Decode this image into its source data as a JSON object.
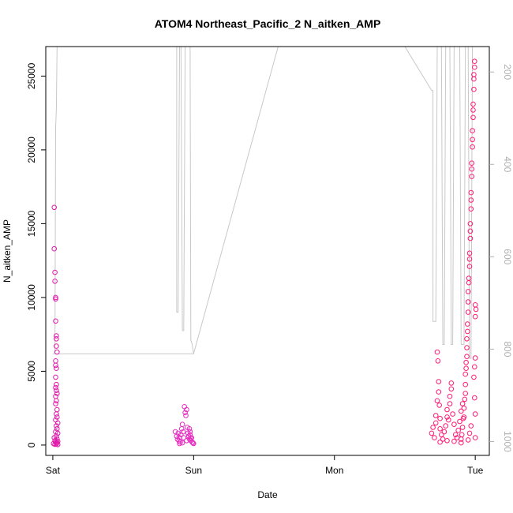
{
  "chart_data": {
    "type": "scatter",
    "title": "ATOM4 Northeast_Pacific_2 N_aitken_AMP",
    "xlabel": "Date",
    "ylabel": "N_aitken_AMP",
    "x_unit": "days",
    "xlim": [
      -0.05,
      3.1
    ],
    "ylim": [
      -700,
      27000
    ],
    "x_ticks": [
      {
        "value": 0,
        "label": "Sat"
      },
      {
        "value": 1,
        "label": "Sun"
      },
      {
        "value": 2,
        "label": "Mon"
      },
      {
        "value": 3,
        "label": "Tue"
      }
    ],
    "y_ticks": [
      0,
      5000,
      10000,
      15000,
      20000,
      25000
    ],
    "y2_ticks": [
      200,
      400,
      600,
      800,
      1000
    ],
    "y2lim": [
      1030,
      145
    ],
    "y2_inverted": true,
    "colors": {
      "point_sat": "#e01aaa",
      "point_sun": "#e62cc0",
      "point_tue": "#ff1a75",
      "altitude_line": "#c8c8c8",
      "axis": "#000000",
      "right_axis": "#b0b0b0"
    },
    "series": [
      {
        "role": "primary",
        "marker": "open-circle",
        "points": [
          [
            0.01,
            16100
          ],
          [
            0.01,
            13300
          ],
          [
            0.015,
            11700
          ],
          [
            0.015,
            11100
          ],
          [
            0.02,
            10000
          ],
          [
            0.02,
            9900
          ],
          [
            0.02,
            8400
          ],
          [
            0.025,
            7400
          ],
          [
            0.025,
            7200
          ],
          [
            0.025,
            6700
          ],
          [
            0.03,
            6300
          ],
          [
            0.02,
            5700
          ],
          [
            0.02,
            5400
          ],
          [
            0.025,
            5200
          ],
          [
            0.02,
            4600
          ],
          [
            0.025,
            4100
          ],
          [
            0.02,
            3900
          ],
          [
            0.025,
            3700
          ],
          [
            0.03,
            3500
          ],
          [
            0.02,
            3300
          ],
          [
            0.025,
            3000
          ],
          [
            0.02,
            2800
          ],
          [
            0.03,
            2400
          ],
          [
            0.025,
            2100
          ],
          [
            0.03,
            1900
          ],
          [
            0.02,
            1700
          ],
          [
            0.035,
            1500
          ],
          [
            0.025,
            1300
          ],
          [
            0.03,
            1100
          ],
          [
            0.02,
            900
          ],
          [
            0.035,
            800
          ],
          [
            0.025,
            600
          ],
          [
            0.01,
            500
          ],
          [
            0.03,
            400
          ],
          [
            0.015,
            300
          ],
          [
            0.035,
            250
          ],
          [
            0.02,
            200
          ],
          [
            0.03,
            150
          ],
          [
            0.005,
            100
          ],
          [
            0.025,
            80
          ],
          [
            0.015,
            50
          ],
          [
            0.035,
            30
          ],
          [
            0.87,
            900
          ],
          [
            0.88,
            600
          ],
          [
            0.885,
            400
          ],
          [
            0.89,
            800
          ],
          [
            0.895,
            300
          ],
          [
            0.9,
            500
          ],
          [
            0.905,
            200
          ],
          [
            0.91,
            700
          ],
          [
            0.915,
            1100
          ],
          [
            0.92,
            1400
          ],
          [
            0.925,
            900
          ],
          [
            0.93,
            500
          ],
          [
            0.935,
            2600
          ],
          [
            0.94,
            2200
          ],
          [
            0.945,
            2000
          ],
          [
            0.95,
            2400
          ],
          [
            0.955,
            1200
          ],
          [
            0.96,
            800
          ],
          [
            0.965,
            600
          ],
          [
            0.97,
            400
          ],
          [
            0.975,
            900
          ],
          [
            0.98,
            300
          ],
          [
            0.985,
            500
          ],
          [
            0.99,
            200
          ],
          [
            0.995,
            150
          ],
          [
            1.0,
            100
          ],
          [
            0.9,
            100
          ],
          [
            0.92,
            150
          ],
          [
            0.95,
            300
          ],
          [
            0.97,
            1100
          ],
          [
            0.975,
            700
          ],
          [
            0.98,
            450
          ],
          [
            2.69,
            800
          ],
          [
            2.7,
            1200
          ],
          [
            2.71,
            500
          ],
          [
            2.72,
            1500
          ],
          [
            2.72,
            2000
          ],
          [
            2.73,
            3000
          ],
          [
            2.73,
            6300
          ],
          [
            2.735,
            5700
          ],
          [
            2.74,
            4300
          ],
          [
            2.74,
            3600
          ],
          [
            2.745,
            2700
          ],
          [
            2.75,
            1800
          ],
          [
            2.75,
            1100
          ],
          [
            2.76,
            700
          ],
          [
            2.77,
            400
          ],
          [
            2.78,
            900
          ],
          [
            2.79,
            1300
          ],
          [
            2.8,
            1900
          ],
          [
            2.8,
            2400
          ],
          [
            2.81,
            1700
          ],
          [
            2.82,
            2800
          ],
          [
            2.82,
            3300
          ],
          [
            2.83,
            3800
          ],
          [
            2.83,
            4200
          ],
          [
            2.84,
            2100
          ],
          [
            2.85,
            1400
          ],
          [
            2.86,
            700
          ],
          [
            2.87,
            500
          ],
          [
            2.88,
            1000
          ],
          [
            2.89,
            1600
          ],
          [
            2.9,
            2300
          ],
          [
            2.91,
            2800
          ],
          [
            2.92,
            1900
          ],
          [
            2.93,
            3500
          ],
          [
            2.93,
            4800
          ],
          [
            2.935,
            5600
          ],
          [
            2.94,
            6000
          ],
          [
            2.94,
            7200
          ],
          [
            2.945,
            8200
          ],
          [
            2.95,
            9000
          ],
          [
            2.95,
            10400
          ],
          [
            2.955,
            11300
          ],
          [
            2.96,
            12100
          ],
          [
            2.96,
            13000
          ],
          [
            2.965,
            14000
          ],
          [
            2.965,
            15000
          ],
          [
            2.97,
            16000
          ],
          [
            2.97,
            17100
          ],
          [
            2.975,
            18200
          ],
          [
            2.975,
            19100
          ],
          [
            2.98,
            20200
          ],
          [
            2.98,
            21300
          ],
          [
            2.985,
            22200
          ],
          [
            2.985,
            23100
          ],
          [
            2.99,
            24100
          ],
          [
            2.99,
            25100
          ],
          [
            2.995,
            26000
          ],
          [
            2.995,
            25600
          ],
          [
            2.99,
            24800
          ],
          [
            2.985,
            22700
          ],
          [
            2.98,
            20700
          ],
          [
            2.975,
            18700
          ],
          [
            2.97,
            16600
          ],
          [
            2.965,
            14500
          ],
          [
            2.96,
            12600
          ],
          [
            2.955,
            11000
          ],
          [
            2.95,
            9700
          ],
          [
            2.945,
            7700
          ],
          [
            2.94,
            6600
          ],
          [
            2.935,
            5200
          ],
          [
            2.93,
            4100
          ],
          [
            2.925,
            3100
          ],
          [
            2.92,
            2500
          ],
          [
            2.915,
            1800
          ],
          [
            2.91,
            1200
          ],
          [
            2.905,
            700
          ],
          [
            2.9,
            400
          ],
          [
            3.0,
            9500
          ],
          [
            3.0,
            8700
          ],
          [
            3.005,
            9200
          ],
          [
            3.0,
            5900
          ],
          [
            2.995,
            5300
          ],
          [
            2.99,
            4600
          ],
          [
            2.995,
            3200
          ],
          [
            3.0,
            2100
          ],
          [
            2.97,
            1300
          ],
          [
            2.96,
            800
          ],
          [
            2.75,
            200
          ],
          [
            2.8,
            300
          ],
          [
            2.85,
            250
          ],
          [
            2.9,
            150
          ],
          [
            2.95,
            350
          ],
          [
            3.0,
            500
          ]
        ]
      },
      {
        "role": "altitude",
        "axis": "right",
        "line": "solid",
        "points": [
          [
            0.0,
            810
          ],
          [
            0.015,
            810
          ],
          [
            0.02,
            320
          ],
          [
            0.025,
            280
          ],
          [
            0.03,
            145
          ],
          [
            0.05,
            145
          ],
          [
            0.5,
            145
          ],
          [
            0.8,
            145
          ],
          [
            0.85,
            145
          ],
          [
            0.88,
            145
          ],
          [
            0.88,
            720
          ],
          [
            0.89,
            720
          ],
          [
            0.9,
            145
          ],
          [
            0.91,
            145
          ],
          [
            0.92,
            760
          ],
          [
            0.93,
            760
          ],
          [
            0.94,
            145
          ],
          [
            0.96,
            145
          ],
          [
            0.97,
            145
          ],
          [
            0.975,
            145
          ],
          [
            0.98,
            780
          ],
          [
            0.99,
            790
          ],
          [
            1.0,
            810
          ],
          [
            0.0,
            810
          ],
          [
            1.0,
            810
          ],
          [
            1.6,
            145
          ],
          [
            2.5,
            145
          ],
          [
            2.69,
            240
          ],
          [
            2.7,
            240
          ],
          [
            2.7,
            740
          ],
          [
            2.72,
            740
          ],
          [
            2.73,
            145
          ],
          [
            2.75,
            145
          ],
          [
            2.76,
            145
          ],
          [
            2.77,
            790
          ],
          [
            2.78,
            790
          ],
          [
            2.79,
            145
          ],
          [
            2.8,
            145
          ],
          [
            2.82,
            145
          ],
          [
            2.83,
            790
          ],
          [
            2.84,
            790
          ],
          [
            2.85,
            145
          ],
          [
            2.88,
            145
          ],
          [
            2.89,
            145
          ],
          [
            2.9,
            790
          ],
          [
            2.92,
            790
          ],
          [
            2.93,
            145
          ],
          [
            2.95,
            145
          ],
          [
            2.96,
            820
          ],
          [
            2.97,
            820
          ],
          [
            2.98,
            145
          ],
          [
            3.0,
            145
          ],
          [
            3.01,
            145
          ],
          [
            3.02,
            145
          ]
        ]
      }
    ]
  }
}
